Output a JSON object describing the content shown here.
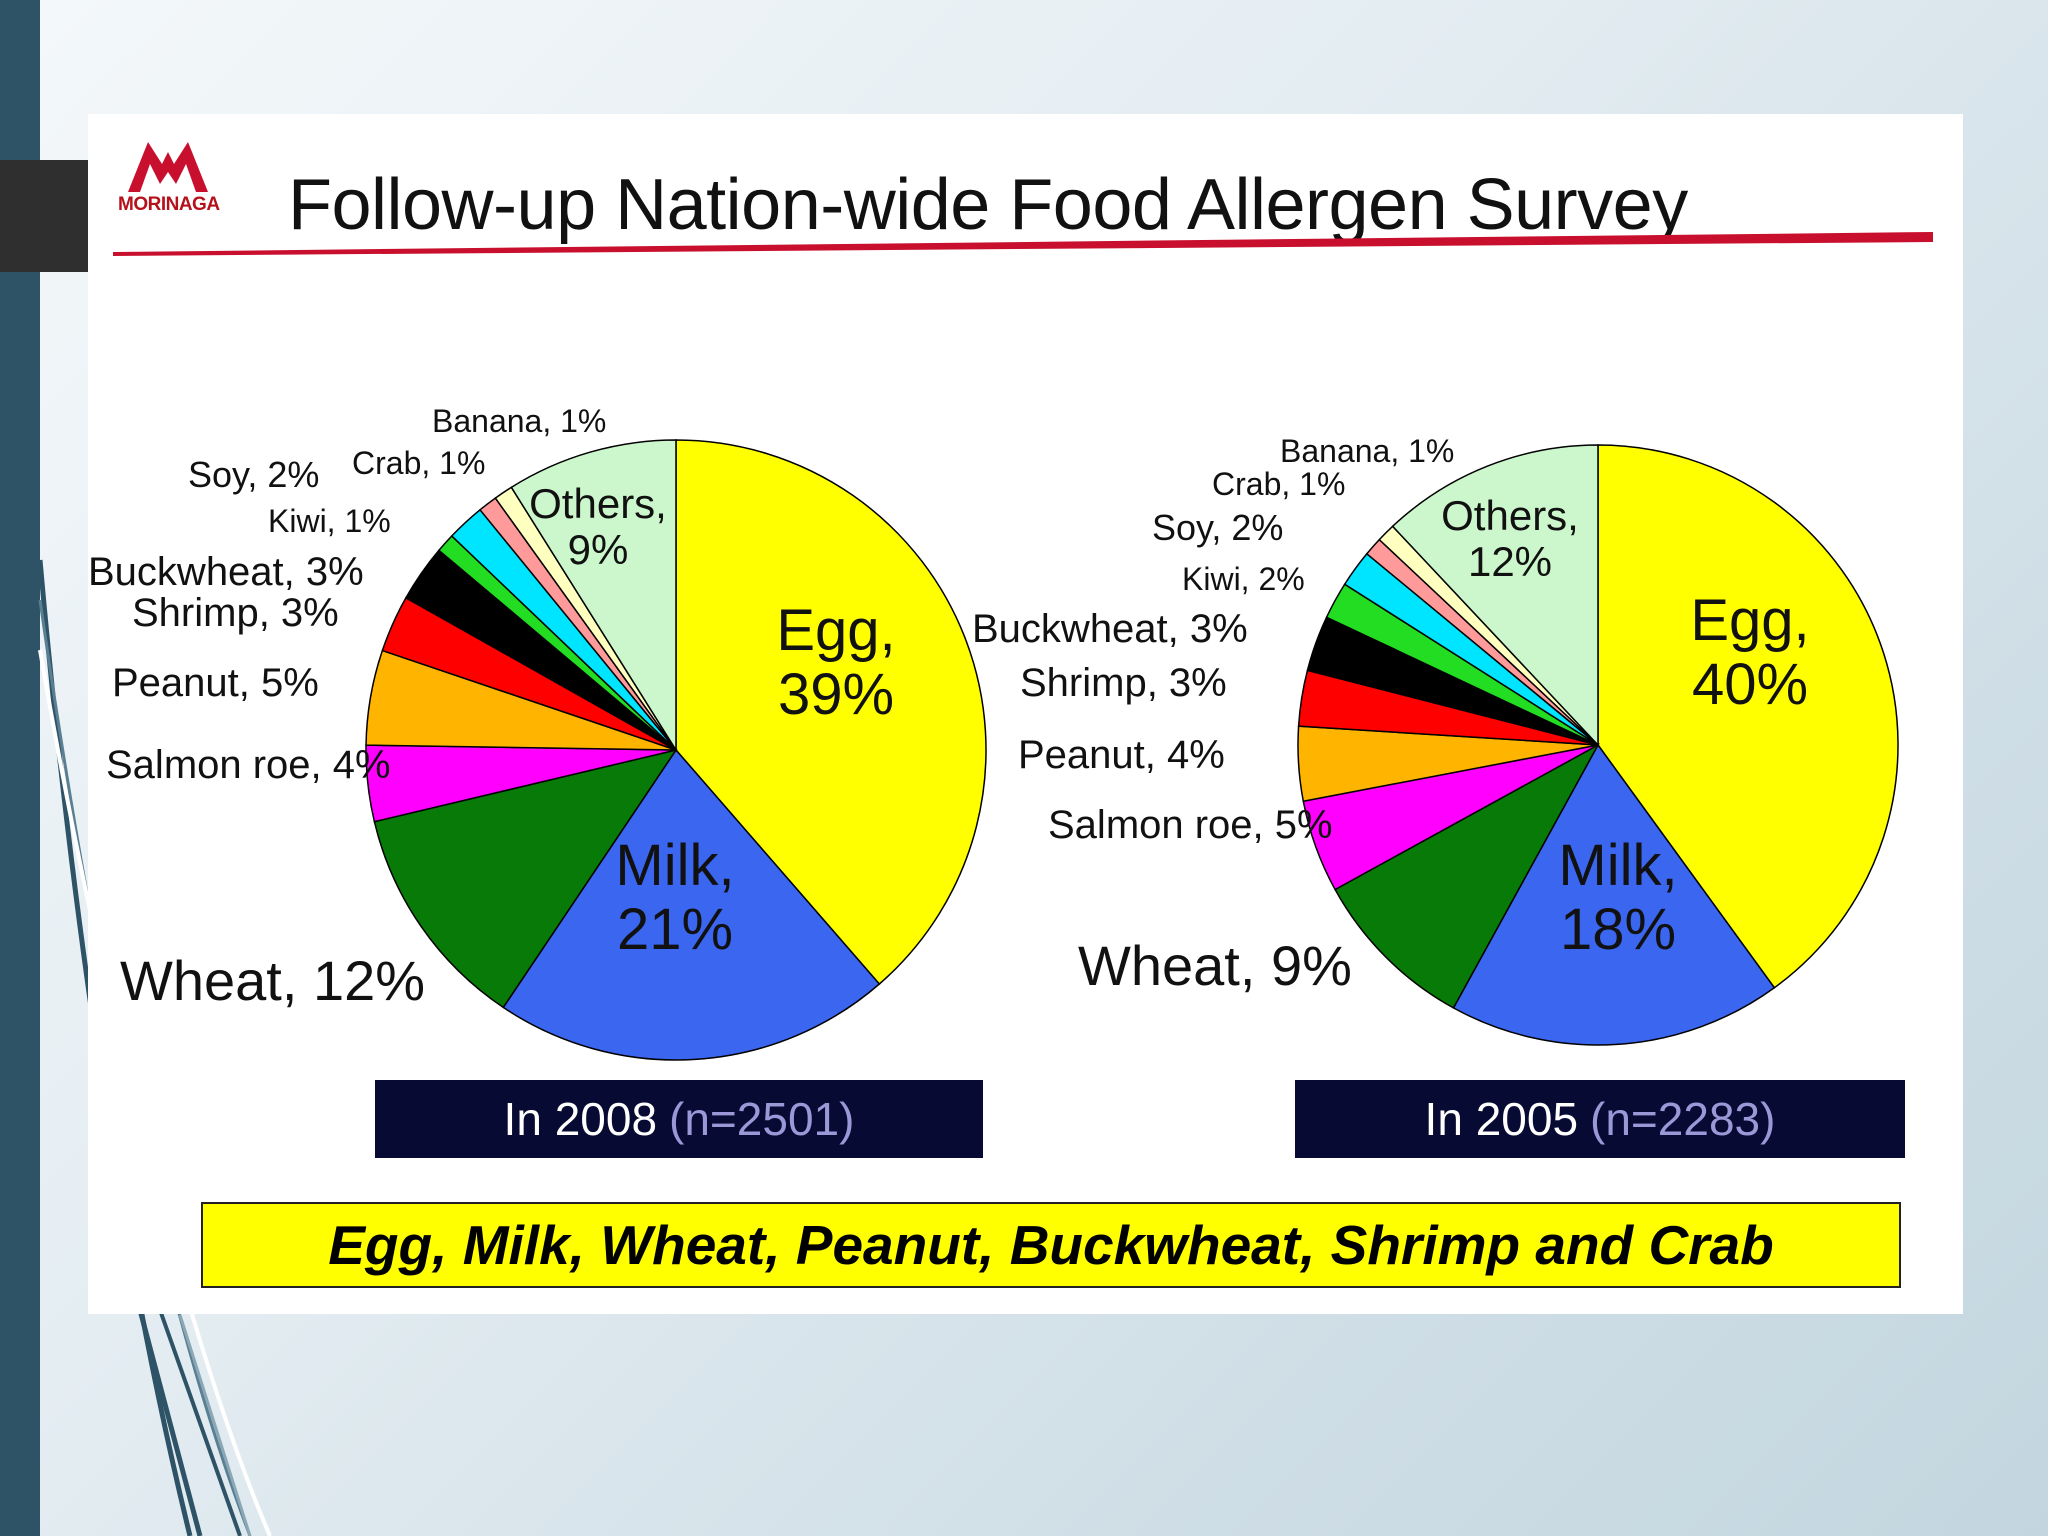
{
  "title": "Follow-up Nation-wide Food Allergen Survey",
  "logo": {
    "name": "MORINAGA"
  },
  "banner": "Egg, Milk, Wheat, Peanut, Buckwheat, Shrimp and Crab",
  "colors": {
    "egg": "#ffff00",
    "milk": "#3a66f0",
    "wheat": "#087a08",
    "salmon_roe": "#ff00ff",
    "peanut": "#ffb400",
    "shrimp": "#ff0000",
    "buckwheat": "#000000",
    "kiwi": "#22dd22",
    "soy": "#00e5ff",
    "crab": "#ff9a9a",
    "banana": "#ffffc0",
    "others": "#ccf7cc",
    "caption_bg": "#070a33",
    "title_underline": "#c8102e"
  },
  "chart_data": [
    {
      "type": "pie",
      "caption": "In 2008",
      "caption_n": "(n=2501)",
      "slices": [
        {
          "key": "egg",
          "name": "Egg",
          "value": 39,
          "label": "39%"
        },
        {
          "key": "milk",
          "name": "Milk",
          "value": 21,
          "label": "21%"
        },
        {
          "key": "wheat",
          "name": "Wheat",
          "value": 12,
          "label": "12%"
        },
        {
          "key": "salmon_roe",
          "name": "Salmon roe",
          "value": 4,
          "label": "4%"
        },
        {
          "key": "peanut",
          "name": "Peanut",
          "value": 5,
          "label": "5%"
        },
        {
          "key": "shrimp",
          "name": "Shrimp",
          "value": 3,
          "label": "3%"
        },
        {
          "key": "buckwheat",
          "name": "Buckwheat",
          "value": 3,
          "label": "3%"
        },
        {
          "key": "kiwi",
          "name": "Kiwi",
          "value": 1,
          "label": "1%"
        },
        {
          "key": "soy",
          "name": "Soy",
          "value": 2,
          "label": "2%"
        },
        {
          "key": "crab",
          "name": "Crab",
          "value": 1,
          "label": "1%"
        },
        {
          "key": "banana",
          "name": "Banana",
          "value": 1,
          "label": "1%"
        },
        {
          "key": "others",
          "name": "Others",
          "value": 9,
          "label": "9%"
        }
      ]
    },
    {
      "type": "pie",
      "caption": "In 2005",
      "caption_n": "(n=2283)",
      "slices": [
        {
          "key": "egg",
          "name": "Egg",
          "value": 40,
          "label": "40%"
        },
        {
          "key": "milk",
          "name": "Milk",
          "value": 18,
          "label": "18%"
        },
        {
          "key": "wheat",
          "name": "Wheat",
          "value": 9,
          "label": "9%"
        },
        {
          "key": "salmon_roe",
          "name": "Salmon roe",
          "value": 5,
          "label": "5%"
        },
        {
          "key": "peanut",
          "name": "Peanut",
          "value": 4,
          "label": "4%"
        },
        {
          "key": "shrimp",
          "name": "Shrimp",
          "value": 3,
          "label": "3%"
        },
        {
          "key": "buckwheat",
          "name": "Buckwheat",
          "value": 3,
          "label": "3%"
        },
        {
          "key": "kiwi",
          "name": "Kiwi",
          "value": 2,
          "label": "2%"
        },
        {
          "key": "soy",
          "name": "Soy",
          "value": 2,
          "label": "2%"
        },
        {
          "key": "crab",
          "name": "Crab",
          "value": 1,
          "label": "1%"
        },
        {
          "key": "banana",
          "name": "Banana",
          "value": 1,
          "label": "1%"
        },
        {
          "key": "others",
          "name": "Others",
          "value": 12,
          "label": "12%"
        }
      ]
    }
  ]
}
